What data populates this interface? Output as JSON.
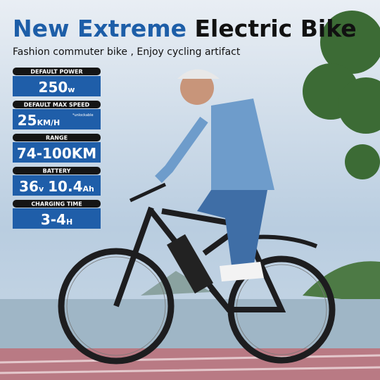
{
  "header": {
    "title_blue": "New Extreme",
    "title_black": "Electric Bike",
    "subtitle": "Fashion commuter bike , Enjoy cycling artifact"
  },
  "specs": [
    {
      "label": "DEFAULT POWER",
      "parts": [
        "250",
        "w"
      ]
    },
    {
      "label": "DEFAULT MAX SPEED",
      "parts": [
        "25",
        "KM/H"
      ],
      "note": "*unlockable"
    },
    {
      "label": "RANGE",
      "parts": [
        "74-100KM"
      ]
    },
    {
      "label": "BATTERY",
      "parts": [
        "36",
        "v",
        "10.4",
        "Ah"
      ]
    },
    {
      "label": "CHARGING TIME",
      "parts": [
        "3-4",
        "H"
      ]
    }
  ]
}
